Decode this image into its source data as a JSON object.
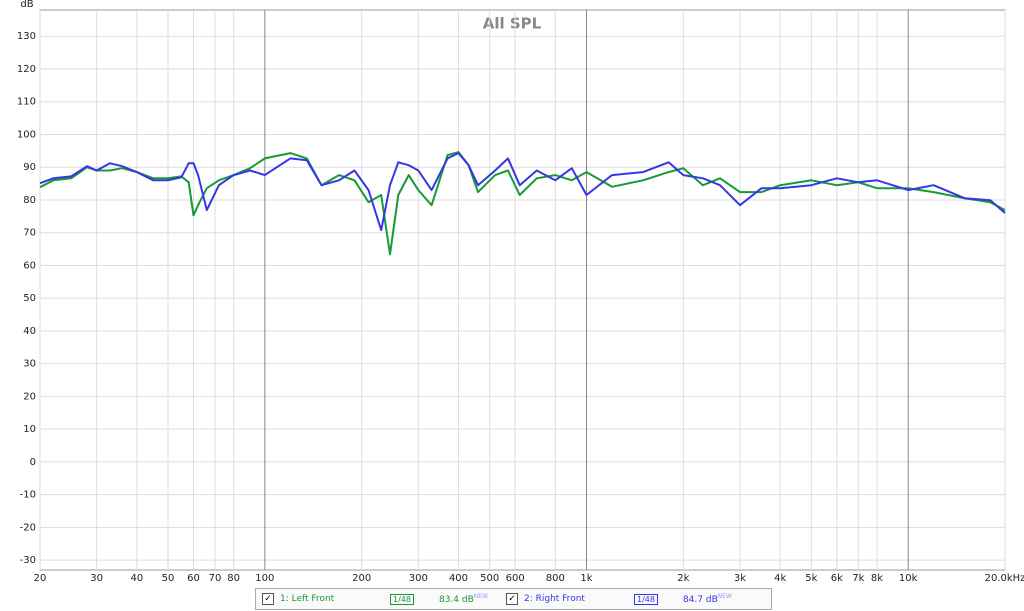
{
  "chart_data": {
    "type": "line",
    "title": "All SPL",
    "y_label": "dB",
    "x_scale": "log",
    "grid": true,
    "xlim": [
      20,
      20000
    ],
    "ylim": [
      -33,
      138
    ],
    "xticks": [
      20,
      30,
      40,
      50,
      60,
      70,
      80,
      100,
      200,
      300,
      400,
      500,
      600,
      800,
      {
        "value": 1000,
        "label": "1k"
      },
      {
        "value": 2000,
        "label": "2k"
      },
      {
        "value": 3000,
        "label": "3k"
      },
      {
        "value": 4000,
        "label": "4k"
      },
      {
        "value": 5000,
        "label": "5k"
      },
      {
        "value": 6000,
        "label": "6k"
      },
      {
        "value": 7000,
        "label": "7k"
      },
      {
        "value": 8000,
        "label": "8k"
      },
      {
        "value": 10000,
        "label": "10k"
      },
      {
        "value": 20000,
        "label": "20.0kHz"
      }
    ],
    "yticks": [
      -30,
      -20,
      -10,
      0,
      10,
      20,
      30,
      40,
      50,
      60,
      70,
      80,
      90,
      100,
      110,
      120,
      130
    ],
    "x": [
      20,
      22,
      25,
      28,
      30,
      33,
      36,
      40,
      45,
      50,
      55,
      58,
      60,
      62,
      66,
      72,
      80,
      90,
      100,
      120,
      135,
      150,
      170,
      190,
      210,
      230,
      245,
      260,
      280,
      300,
      330,
      370,
      400,
      430,
      460,
      520,
      570,
      620,
      700,
      800,
      900,
      1000,
      1200,
      1500,
      1800,
      2000,
      2300,
      2600,
      3000,
      3500,
      4000,
      5000,
      6000,
      7000,
      8000,
      10000,
      12000,
      15000,
      18000,
      20000
    ],
    "series": [
      {
        "name": "1: Left Front",
        "color": "#159a36",
        "smoothing": "1/48",
        "level": "83.4 dB",
        "badge": "NEW",
        "values": [
          83.9,
          86,
          86.6,
          90,
          89,
          89,
          89.7,
          88.5,
          86.6,
          86.6,
          87.2,
          85.4,
          75.3,
          78.4,
          83.6,
          86,
          87.6,
          89.7,
          92.7,
          94.3,
          92.7,
          84.5,
          87.6,
          86,
          79.3,
          81.5,
          63.4,
          81.5,
          87.6,
          83,
          78.4,
          93.7,
          94.6,
          90.6,
          82.4,
          87.6,
          89,
          81.5,
          86.6,
          87.6,
          86,
          88.5,
          84,
          86,
          88.5,
          89.7,
          84.5,
          86.6,
          82.4,
          82.4,
          84.5,
          86,
          84.5,
          85.4,
          83.6,
          83.6,
          82.4,
          80.5,
          79.3,
          76.9
        ]
      },
      {
        "name": "2: Right Front",
        "color": "#3636e6",
        "smoothing": "1/48",
        "level": "84.7 dB",
        "badge": "NEW",
        "values": [
          85.1,
          86.6,
          87.2,
          90.3,
          89,
          91.2,
          90.3,
          88.5,
          86,
          86,
          86.9,
          91.2,
          91.2,
          87.6,
          76.9,
          84.5,
          87.6,
          89,
          87.6,
          92.7,
          92.1,
          84.5,
          86,
          89,
          83,
          70.8,
          84.5,
          91.5,
          90.6,
          89,
          83,
          92.7,
          94.3,
          90.6,
          84.5,
          89,
          92.7,
          84.5,
          89,
          86,
          89.7,
          81.5,
          87.6,
          88.5,
          91.5,
          87.6,
          86.6,
          84.5,
          78.4,
          83.6,
          83.6,
          84.5,
          86.6,
          85.4,
          86,
          83,
          84.5,
          80.5,
          79.9,
          76
        ]
      }
    ]
  }
}
